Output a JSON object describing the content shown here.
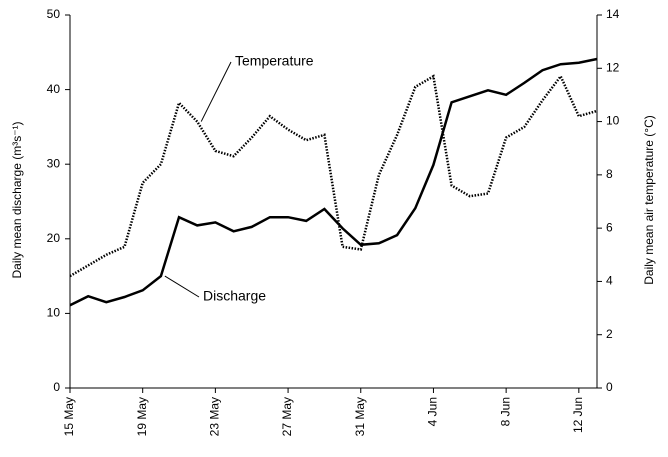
{
  "chart_data": {
    "type": "line",
    "categories": [
      "15 May",
      null,
      null,
      null,
      "19 May",
      null,
      null,
      null,
      "23 May",
      null,
      null,
      null,
      "27 May",
      null,
      null,
      null,
      "31 May",
      null,
      null,
      null,
      "4 Jun",
      null,
      null,
      null,
      "8 Jun",
      null,
      null,
      null,
      "12 Jun",
      null
    ],
    "series": [
      {
        "name": "Discharge",
        "color": "#000000",
        "line_style": "solid",
        "values": [
          11.1,
          12.3,
          11.5,
          12.2,
          13.1,
          15,
          22.9,
          21.8,
          22.2,
          21,
          21.6,
          22.9,
          22.9,
          22.4,
          24,
          21.4,
          19.2,
          19.4,
          20.5,
          24.1,
          29.9,
          38.3,
          39.1,
          39.9,
          39.3,
          40.9,
          42.6,
          43.4,
          43.6,
          44.1
        ]
      },
      {
        "name": "Temperature",
        "color": "#000000",
        "line_style": "dotted",
        "axis": "y2",
        "values": [
          4.2,
          4.6,
          5.0,
          5.3,
          7.7,
          8.4,
          10.7,
          10.0,
          8.9,
          8.7,
          9.4,
          10.2,
          9.7,
          9.3,
          9.5,
          5.3,
          5.2,
          8.0,
          9.5,
          11.3,
          11.7,
          7.6,
          7.2,
          7.3,
          9.4,
          9.8,
          10.8,
          11.7,
          10.2,
          10.4
        ]
      }
    ],
    "y_label": "Daily mean discharge (m³s⁻¹)",
    "y2_label": "Daily mean air temperature (°C)",
    "ylim": [
      0,
      50
    ],
    "yticks": [
      0,
      10,
      20,
      30,
      40,
      50
    ],
    "y2lim": [
      0,
      14
    ],
    "y2ticks": [
      0,
      2,
      4,
      6,
      8,
      10,
      12,
      14
    ],
    "grid": false
  }
}
